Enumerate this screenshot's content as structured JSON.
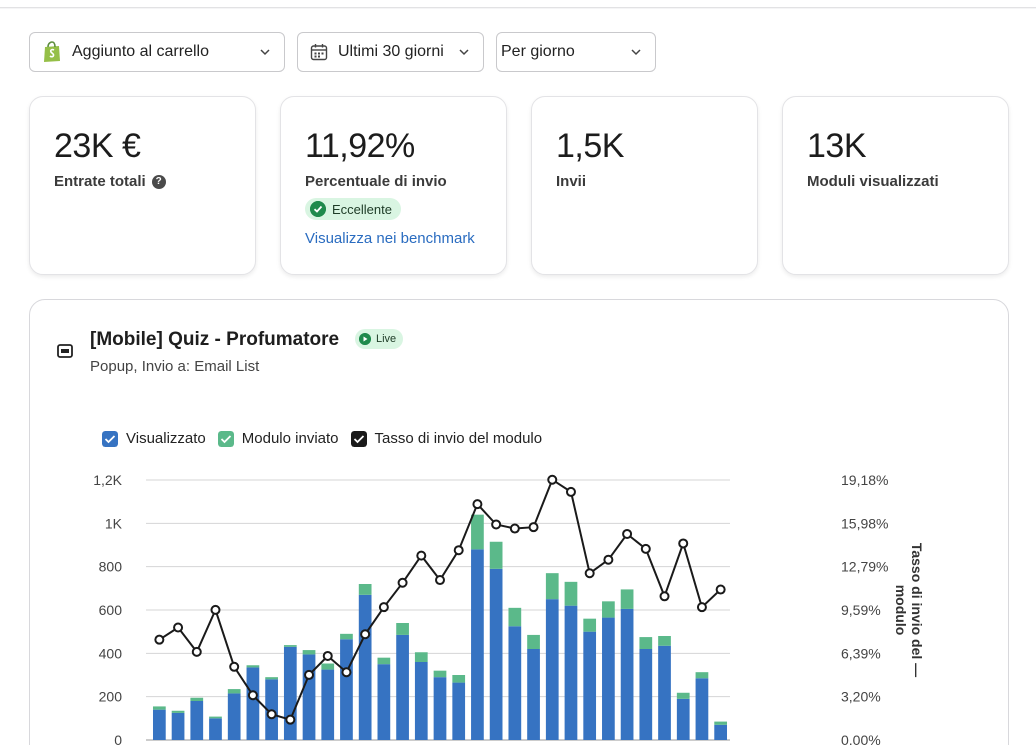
{
  "filters": {
    "event": "Aggiunto al carrello",
    "range": "Ultimi 30 giorni",
    "granularity": "Per giorno"
  },
  "metrics": [
    {
      "value": "23K €",
      "label": "Entrate totali",
      "help": "?"
    },
    {
      "value": "11,92%",
      "label": "Percentuale di invio",
      "badge": "Eccellente",
      "link": "Visualizza nei benchmark"
    },
    {
      "value": "1,5K",
      "label": "Invii"
    },
    {
      "value": "13K",
      "label": "Moduli visualizzati"
    }
  ],
  "form": {
    "title": "[Mobile] Quiz - Profumatore",
    "status": "Live",
    "subtitle": "Popup, Invio a: Email List"
  },
  "legend": [
    "Visualizzato",
    "Modulo inviato",
    "Tasso di invio del modulo"
  ],
  "colors": {
    "viewed": "#3673c2",
    "submitted": "#5bb98a",
    "rate": "#1a1a1a",
    "success": "#1f8a4c",
    "link": "#2a6cc0"
  },
  "icons": {
    "filter1": "shopify-bag-icon",
    "filter2": "calendar-icon",
    "form": "popup-form-icon"
  },
  "chart_data": {
    "type": "bar",
    "y_left_ticks": [
      "0",
      "200",
      "400",
      "600",
      "800",
      "1K",
      "1,2K"
    ],
    "y_left_lim": [
      0,
      1200
    ],
    "y_right_ticks": [
      "0,00%",
      "3,20%",
      "6,39%",
      "9,59%",
      "12,79%",
      "15,98%",
      "19,18%"
    ],
    "y_right_lim": [
      0,
      19.18
    ],
    "y_right_label": "Tasso di invio del modulo",
    "series": [
      {
        "name": "Visualizzato",
        "values": [
          140,
          125,
          180,
          100,
          215,
          335,
          280,
          430,
          395,
          325,
          465,
          670,
          350,
          485,
          360,
          290,
          265,
          880,
          790,
          525,
          420,
          650,
          620,
          500,
          565,
          605,
          420,
          435,
          190,
          285,
          70
        ]
      },
      {
        "name": "Modulo inviato",
        "values": [
          15,
          10,
          15,
          8,
          20,
          10,
          10,
          8,
          20,
          28,
          25,
          50,
          30,
          55,
          45,
          30,
          35,
          160,
          125,
          85,
          65,
          120,
          110,
          60,
          75,
          90,
          55,
          45,
          28,
          28,
          15
        ]
      },
      {
        "name": "Tasso di invio del modulo",
        "values": [
          7.4,
          8.3,
          6.5,
          9.6,
          5.4,
          3.3,
          1.9,
          1.5,
          4.8,
          6.2,
          5.0,
          7.8,
          9.8,
          11.6,
          13.6,
          11.8,
          14.0,
          17.4,
          15.9,
          15.6,
          15.7,
          19.2,
          18.3,
          12.3,
          13.3,
          15.2,
          14.1,
          10.6,
          14.5,
          9.8,
          11.1
        ]
      }
    ]
  }
}
